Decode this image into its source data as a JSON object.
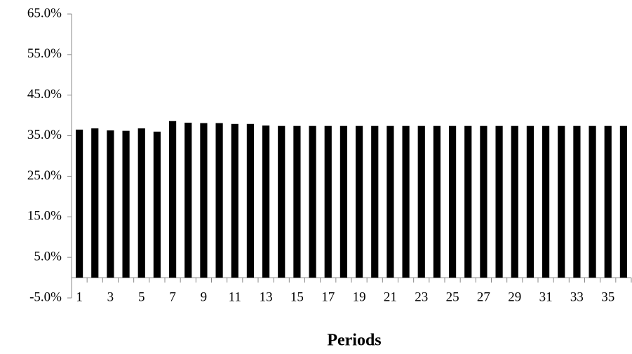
{
  "chart_data": {
    "type": "bar",
    "x_label": "Periods",
    "categories": [
      "1",
      null,
      "3",
      null,
      "5",
      null,
      "7",
      null,
      "9",
      null,
      "11",
      null,
      "13",
      null,
      "15",
      null,
      "17",
      null,
      "19",
      null,
      "21",
      null,
      "23",
      null,
      "25",
      null,
      "27",
      null,
      "29",
      null,
      "31",
      null,
      "33",
      null,
      "35",
      null
    ],
    "values": [
      36.5,
      36.8,
      36.3,
      36.2,
      36.8,
      36.0,
      38.6,
      38.2,
      38.1,
      38.1,
      37.9,
      37.9,
      37.5,
      37.4,
      37.4,
      37.4,
      37.4,
      37.4,
      37.4,
      37.4,
      37.4,
      37.4,
      37.4,
      37.4,
      37.4,
      37.4,
      37.4,
      37.4,
      37.4,
      37.4,
      37.4,
      37.4,
      37.4,
      37.4,
      37.4,
      37.4
    ],
    "color": "#000000",
    "ylim": [
      -5,
      65
    ],
    "yticks": [
      {
        "value": -5,
        "label": "-5.0%"
      },
      {
        "value": 5,
        "label": "5.0%"
      },
      {
        "value": 15,
        "label": "15.0%"
      },
      {
        "value": 25,
        "label": "25.0%"
      },
      {
        "value": 35,
        "label": "35.0%"
      },
      {
        "value": 45,
        "label": "45.0%"
      },
      {
        "value": 55,
        "label": "55.0%"
      },
      {
        "value": 65,
        "label": "65.0%"
      }
    ],
    "grid": false
  }
}
